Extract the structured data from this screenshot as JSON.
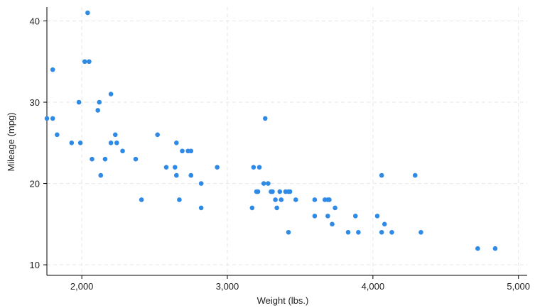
{
  "chart_data": {
    "type": "scatter",
    "title": "",
    "xlabel": "Weight (lbs.)",
    "ylabel": "Mileage (mpg)",
    "xlim": [
      1760,
      5060
    ],
    "ylim": [
      8.7,
      41.7
    ],
    "xticks": [
      2000,
      3000,
      4000,
      5000
    ],
    "xtick_labels": [
      "2,000",
      "3,000",
      "4,000",
      "5,000"
    ],
    "yticks": [
      10,
      20,
      30,
      40
    ],
    "ytick_labels": [
      "10",
      "20",
      "30",
      "40"
    ],
    "grid": true,
    "marker_color": "#2f8ae6",
    "points": [
      [
        1760,
        28
      ],
      [
        1800,
        34
      ],
      [
        1800,
        28
      ],
      [
        1830,
        26
      ],
      [
        1930,
        25
      ],
      [
        1980,
        30
      ],
      [
        1990,
        25
      ],
      [
        2020,
        35
      ],
      [
        2040,
        41
      ],
      [
        2050,
        35
      ],
      [
        2070,
        23
      ],
      [
        2110,
        29
      ],
      [
        2120,
        30
      ],
      [
        2130,
        21
      ],
      [
        2160,
        23
      ],
      [
        2200,
        31
      ],
      [
        2200,
        25
      ],
      [
        2230,
        26
      ],
      [
        2240,
        25
      ],
      [
        2280,
        24
      ],
      [
        2370,
        23
      ],
      [
        2410,
        18
      ],
      [
        2520,
        26
      ],
      [
        2580,
        22
      ],
      [
        2640,
        22
      ],
      [
        2650,
        25
      ],
      [
        2650,
        21
      ],
      [
        2670,
        18
      ],
      [
        2690,
        24
      ],
      [
        2730,
        24
      ],
      [
        2750,
        24
      ],
      [
        2750,
        21
      ],
      [
        2820,
        20
      ],
      [
        2820,
        17
      ],
      [
        2930,
        22
      ],
      [
        3170,
        17
      ],
      [
        3180,
        22
      ],
      [
        3200,
        19
      ],
      [
        3210,
        19
      ],
      [
        3220,
        22
      ],
      [
        3250,
        20
      ],
      [
        3260,
        28
      ],
      [
        3280,
        20
      ],
      [
        3300,
        19
      ],
      [
        3310,
        19
      ],
      [
        3330,
        18
      ],
      [
        3340,
        17
      ],
      [
        3360,
        19
      ],
      [
        3370,
        18
      ],
      [
        3400,
        19
      ],
      [
        3420,
        19
      ],
      [
        3420,
        14
      ],
      [
        3430,
        19
      ],
      [
        3470,
        18
      ],
      [
        3600,
        18
      ],
      [
        3600,
        16
      ],
      [
        3670,
        18
      ],
      [
        3690,
        18
      ],
      [
        3690,
        16
      ],
      [
        3700,
        18
      ],
      [
        3720,
        15
      ],
      [
        3740,
        17
      ],
      [
        3830,
        14
      ],
      [
        3880,
        16
      ],
      [
        3900,
        14
      ],
      [
        4030,
        16
      ],
      [
        4060,
        14
      ],
      [
        4060,
        21
      ],
      [
        4080,
        15
      ],
      [
        4130,
        14
      ],
      [
        4290,
        21
      ],
      [
        4330,
        14
      ],
      [
        4720,
        12
      ],
      [
        4840,
        12
      ]
    ]
  }
}
